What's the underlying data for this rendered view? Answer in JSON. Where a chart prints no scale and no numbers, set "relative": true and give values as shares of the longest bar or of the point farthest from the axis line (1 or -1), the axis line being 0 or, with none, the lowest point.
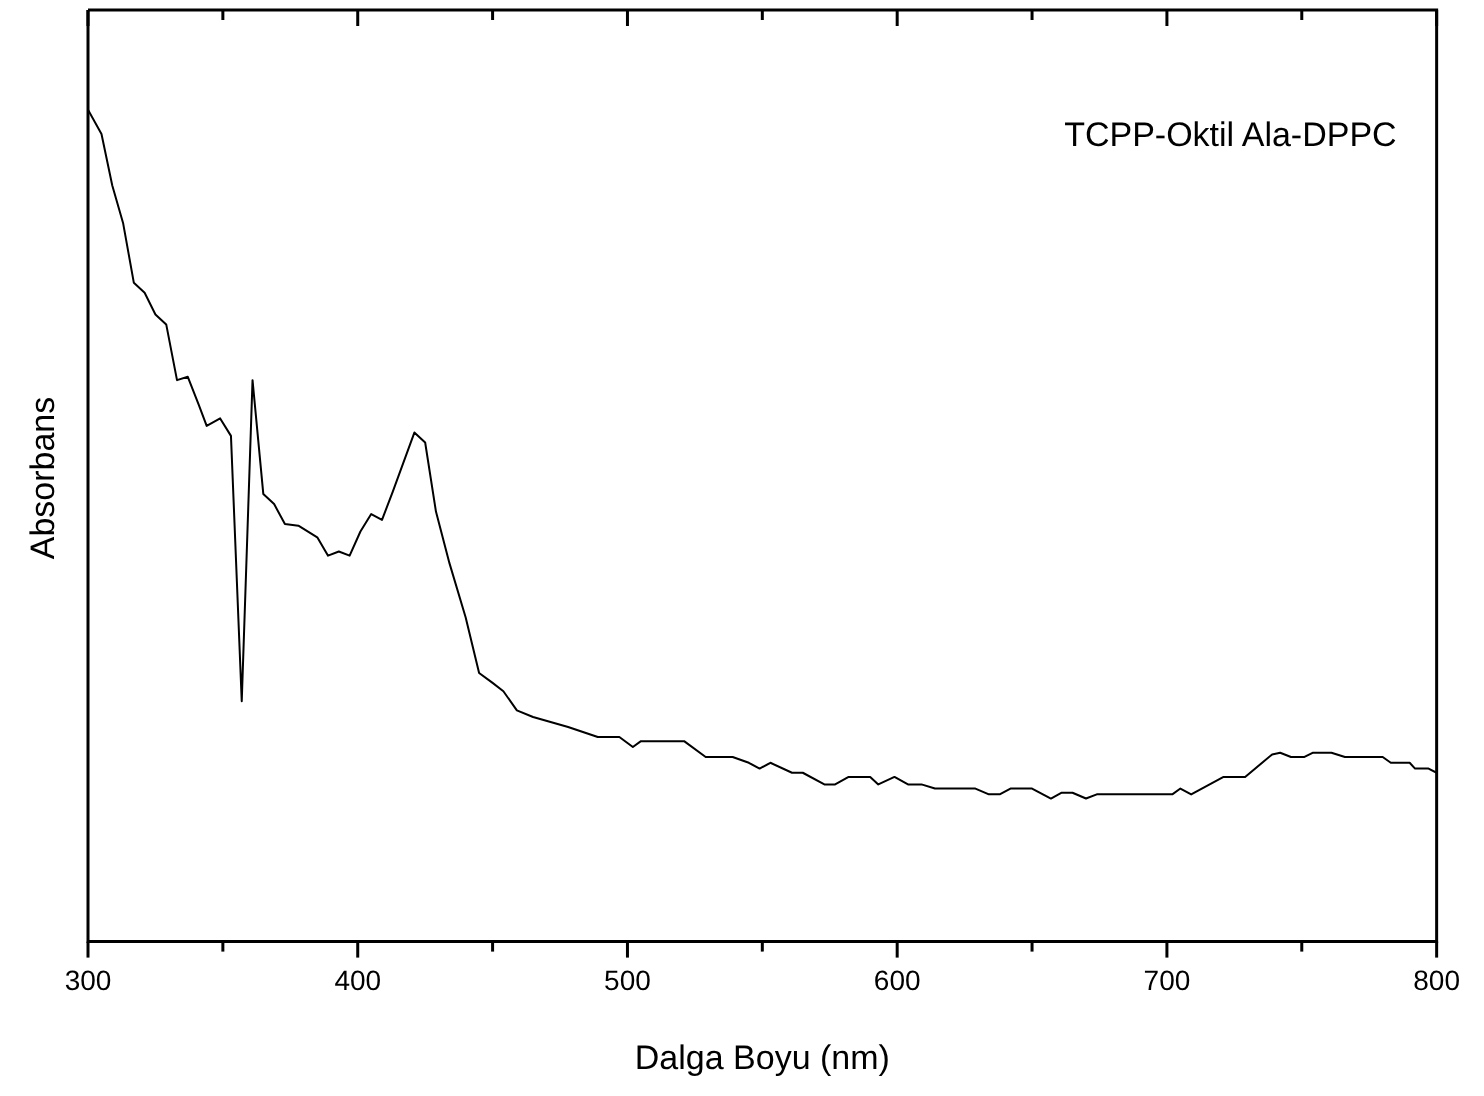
{
  "chart_data": {
    "type": "line",
    "relative": true,
    "xlabel": "Dalga Boyu (nm)",
    "ylabel": "Absorbans",
    "annotations": [
      "TCPP-Oktil Ala-DPPC"
    ],
    "xlim": [
      300,
      800
    ],
    "xticks": [
      300,
      {
        "value": 350,
        "label": null
      },
      400,
      {
        "value": 450,
        "label": null
      },
      500,
      {
        "value": 550,
        "label": null
      },
      600,
      {
        "value": 650,
        "label": null
      },
      700,
      {
        "value": 750,
        "label": null
      },
      800
    ],
    "grid": false,
    "legend": false,
    "marker": "none",
    "line_style": "solid",
    "series": [
      {
        "color": "#000000",
        "x": [
          300,
          305,
          309,
          313,
          317,
          321,
          325,
          329,
          333,
          337,
          341,
          344,
          349,
          353,
          357,
          361,
          365,
          369,
          373,
          378,
          385,
          389,
          393,
          397,
          401,
          405,
          409,
          413,
          421,
          425,
          429,
          434,
          440,
          445,
          450,
          454,
          459,
          465,
          478,
          489,
          497,
          502,
          505,
          521,
          529,
          539,
          545,
          549,
          553,
          561,
          565,
          573,
          577,
          582,
          590,
          593,
          599,
          604,
          609,
          614,
          629,
          634,
          638,
          642,
          650,
          657,
          661,
          665,
          670,
          674,
          702,
          705,
          709,
          721,
          729,
          739,
          742,
          746,
          751,
          754,
          761,
          766,
          780,
          783,
          790,
          792,
          797,
          800
        ],
        "values": [
          1.0,
          0.971,
          0.909,
          0.864,
          0.792,
          0.78,
          0.754,
          0.742,
          0.675,
          0.679,
          0.646,
          0.62,
          0.629,
          0.608,
          0.289,
          0.675,
          0.538,
          0.526,
          0.502,
          0.5,
          0.486,
          0.464,
          0.469,
          0.464,
          0.493,
          0.514,
          0.507,
          0.541,
          0.612,
          0.6,
          0.517,
          0.455,
          0.39,
          0.323,
          0.311,
          0.301,
          0.278,
          0.27,
          0.258,
          0.246,
          0.246,
          0.234,
          0.241,
          0.241,
          0.222,
          0.222,
          0.215,
          0.208,
          0.215,
          0.203,
          0.203,
          0.189,
          0.189,
          0.198,
          0.198,
          0.189,
          0.198,
          0.189,
          0.189,
          0.184,
          0.184,
          0.177,
          0.177,
          0.184,
          0.184,
          0.172,
          0.179,
          0.179,
          0.172,
          0.177,
          0.177,
          0.184,
          0.177,
          0.198,
          0.198,
          0.225,
          0.227,
          0.222,
          0.222,
          0.227,
          0.227,
          0.222,
          0.222,
          0.215,
          0.215,
          0.208,
          0.208,
          0.203
        ]
      }
    ]
  }
}
